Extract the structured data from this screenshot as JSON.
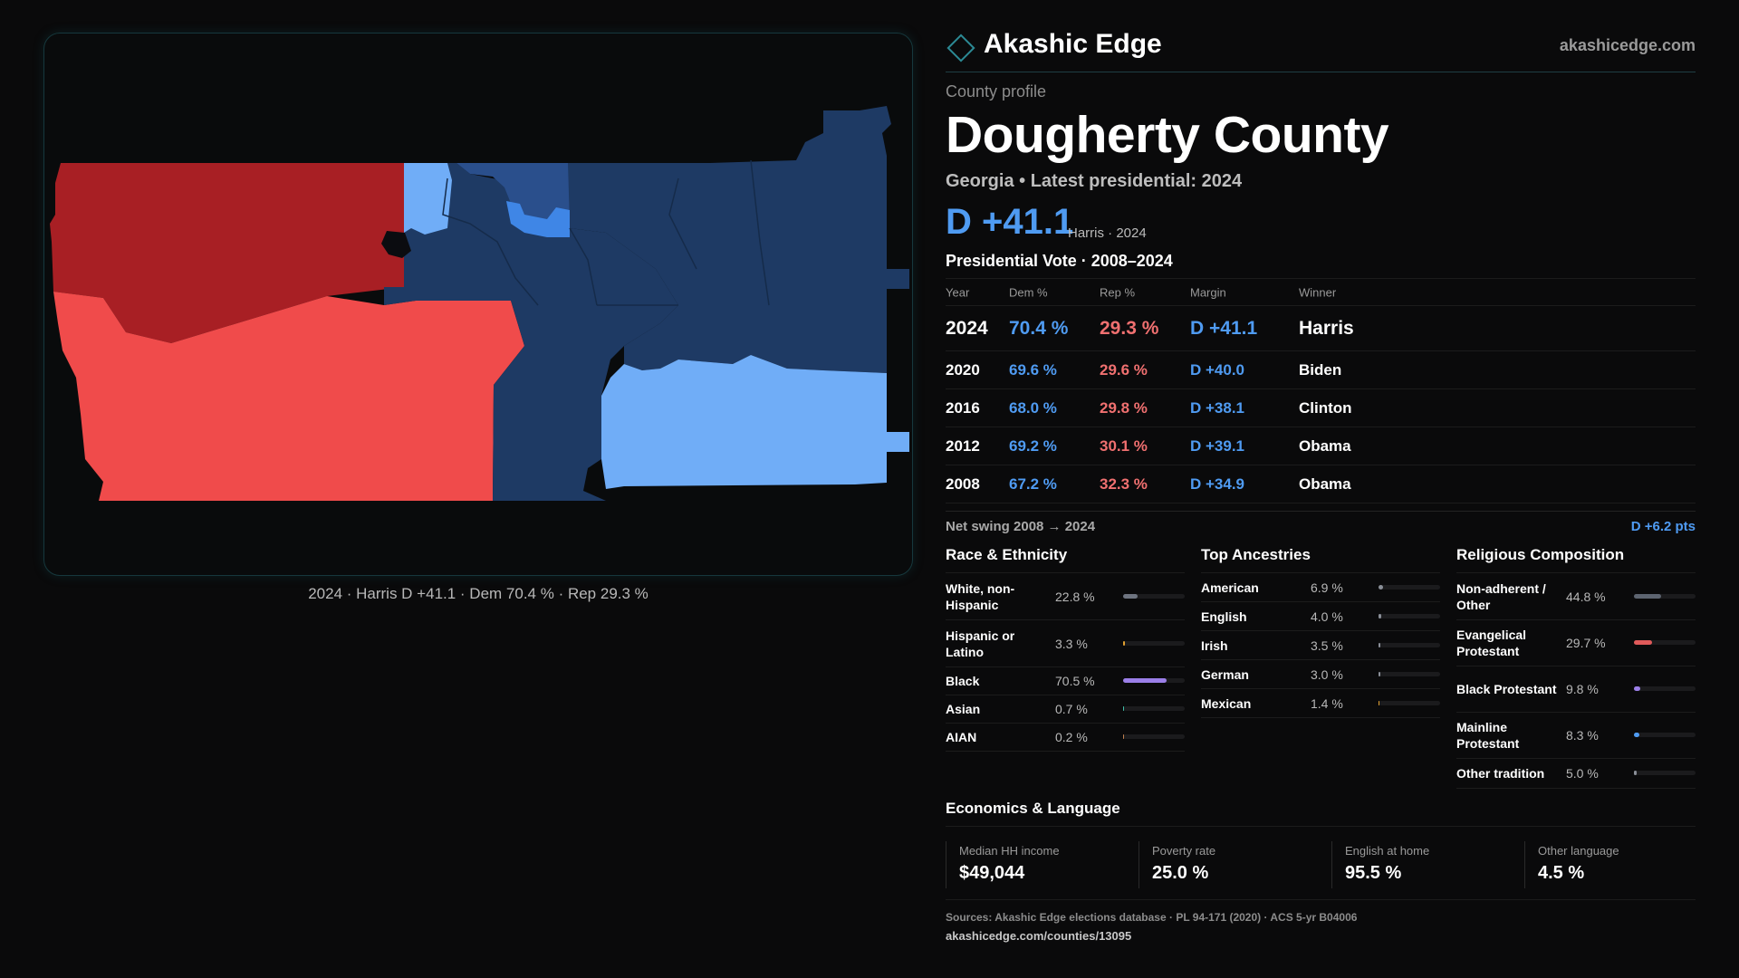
{
  "brand": {
    "name": "Akashic Edge",
    "site": "akashicedge.com",
    "icon": "diamond-outline-icon"
  },
  "profile": {
    "eyebrow": "County profile",
    "county": "Dougherty County",
    "subline": "Georgia • Latest presidential: 2024",
    "margin": "D +41.1",
    "margin_note": "Harris · 2024"
  },
  "map": {
    "caption": "2024 · Harris D +41.1 · Dem 70.4 % · Rep 29.3 %",
    "colors": {
      "safe_r": "#a81f24",
      "lean_r": "#f04b4b",
      "lean_d": "#70adf7",
      "likely_d": "#3f86e6",
      "mid_d": "#2a4f8c",
      "safe_d": "#1e3a64"
    }
  },
  "votes": {
    "title": "Presidential Vote · 2008–2024",
    "headers": [
      "Year",
      "Dem %",
      "Rep %",
      "Margin",
      "Winner"
    ],
    "rows": [
      {
        "year": "2024",
        "dem": "70.4 %",
        "rep": "29.3 %",
        "margin": "D +41.1",
        "winner": "Harris"
      },
      {
        "year": "2020",
        "dem": "69.6 %",
        "rep": "29.6 %",
        "margin": "D +40.0",
        "winner": "Biden"
      },
      {
        "year": "2016",
        "dem": "68.0 %",
        "rep": "29.8 %",
        "margin": "D +38.1",
        "winner": "Clinton"
      },
      {
        "year": "2012",
        "dem": "69.2 %",
        "rep": "30.1 %",
        "margin": "D +39.1",
        "winner": "Obama"
      },
      {
        "year": "2008",
        "dem": "67.2 %",
        "rep": "32.3 %",
        "margin": "D +34.9",
        "winner": "Obama"
      }
    ],
    "swing_label": "Net swing 2008 → 2024",
    "swing_value": "D +6.2 pts"
  },
  "race": {
    "title": "Race & Ethnicity",
    "items": [
      {
        "label": "White, non-Hispanic",
        "value": "22.8 %",
        "pct": 22.8,
        "color": "#6e7480"
      },
      {
        "label": "Hispanic or Latino",
        "value": "3.3 %",
        "pct": 3.3,
        "color": "#e0a030"
      },
      {
        "label": "Black",
        "value": "70.5 %",
        "pct": 70.5,
        "color": "#9b7fe8"
      },
      {
        "label": "Asian",
        "value": "0.7 %",
        "pct": 0.7,
        "color": "#3fc0a8"
      },
      {
        "label": "AIAN",
        "value": "0.2 %",
        "pct": 0.2,
        "color": "#c08050"
      }
    ]
  },
  "ancestry": {
    "title": "Top Ancestries",
    "items": [
      {
        "label": "American",
        "value": "6.9 %",
        "pct": 6.9,
        "color": "#8a8f98"
      },
      {
        "label": "English",
        "value": "4.0 %",
        "pct": 4.0,
        "color": "#8a8f98"
      },
      {
        "label": "Irish",
        "value": "3.5 %",
        "pct": 3.5,
        "color": "#8a8f98"
      },
      {
        "label": "German",
        "value": "3.0 %",
        "pct": 3.0,
        "color": "#8a8f98"
      },
      {
        "label": "Mexican",
        "value": "1.4 %",
        "pct": 1.4,
        "color": "#e0a030"
      }
    ]
  },
  "religion": {
    "title": "Religious Composition",
    "items": [
      {
        "label": "Non-adherent / Other",
        "value": "44.8 %",
        "pct": 44.8,
        "color": "#5d6470"
      },
      {
        "label": "Evangelical Protestant",
        "value": "29.7 %",
        "pct": 29.7,
        "color": "#e05a5a"
      },
      {
        "label": "Black Protestant",
        "value": "9.8 %",
        "pct": 9.8,
        "color": "#9b7fe8"
      },
      {
        "label": "Mainline Protestant",
        "value": "8.3 %",
        "pct": 8.3,
        "color": "#4f9bf2"
      },
      {
        "label": "Other tradition",
        "value": "5.0 %",
        "pct": 5.0,
        "color": "#8a8f98"
      }
    ]
  },
  "economics": {
    "title": "Economics & Language",
    "cells": [
      {
        "label": "Median HH income",
        "value": "$49,044"
      },
      {
        "label": "Poverty rate",
        "value": "25.0 %"
      },
      {
        "label": "English at home",
        "value": "95.5 %"
      },
      {
        "label": "Other language",
        "value": "4.5 %"
      }
    ]
  },
  "footer": {
    "sources": "Sources: Akashic Edge elections database · PL 94-171 (2020) · ACS 5-yr B04006",
    "url": "akashicedge.com/counties/13095"
  }
}
